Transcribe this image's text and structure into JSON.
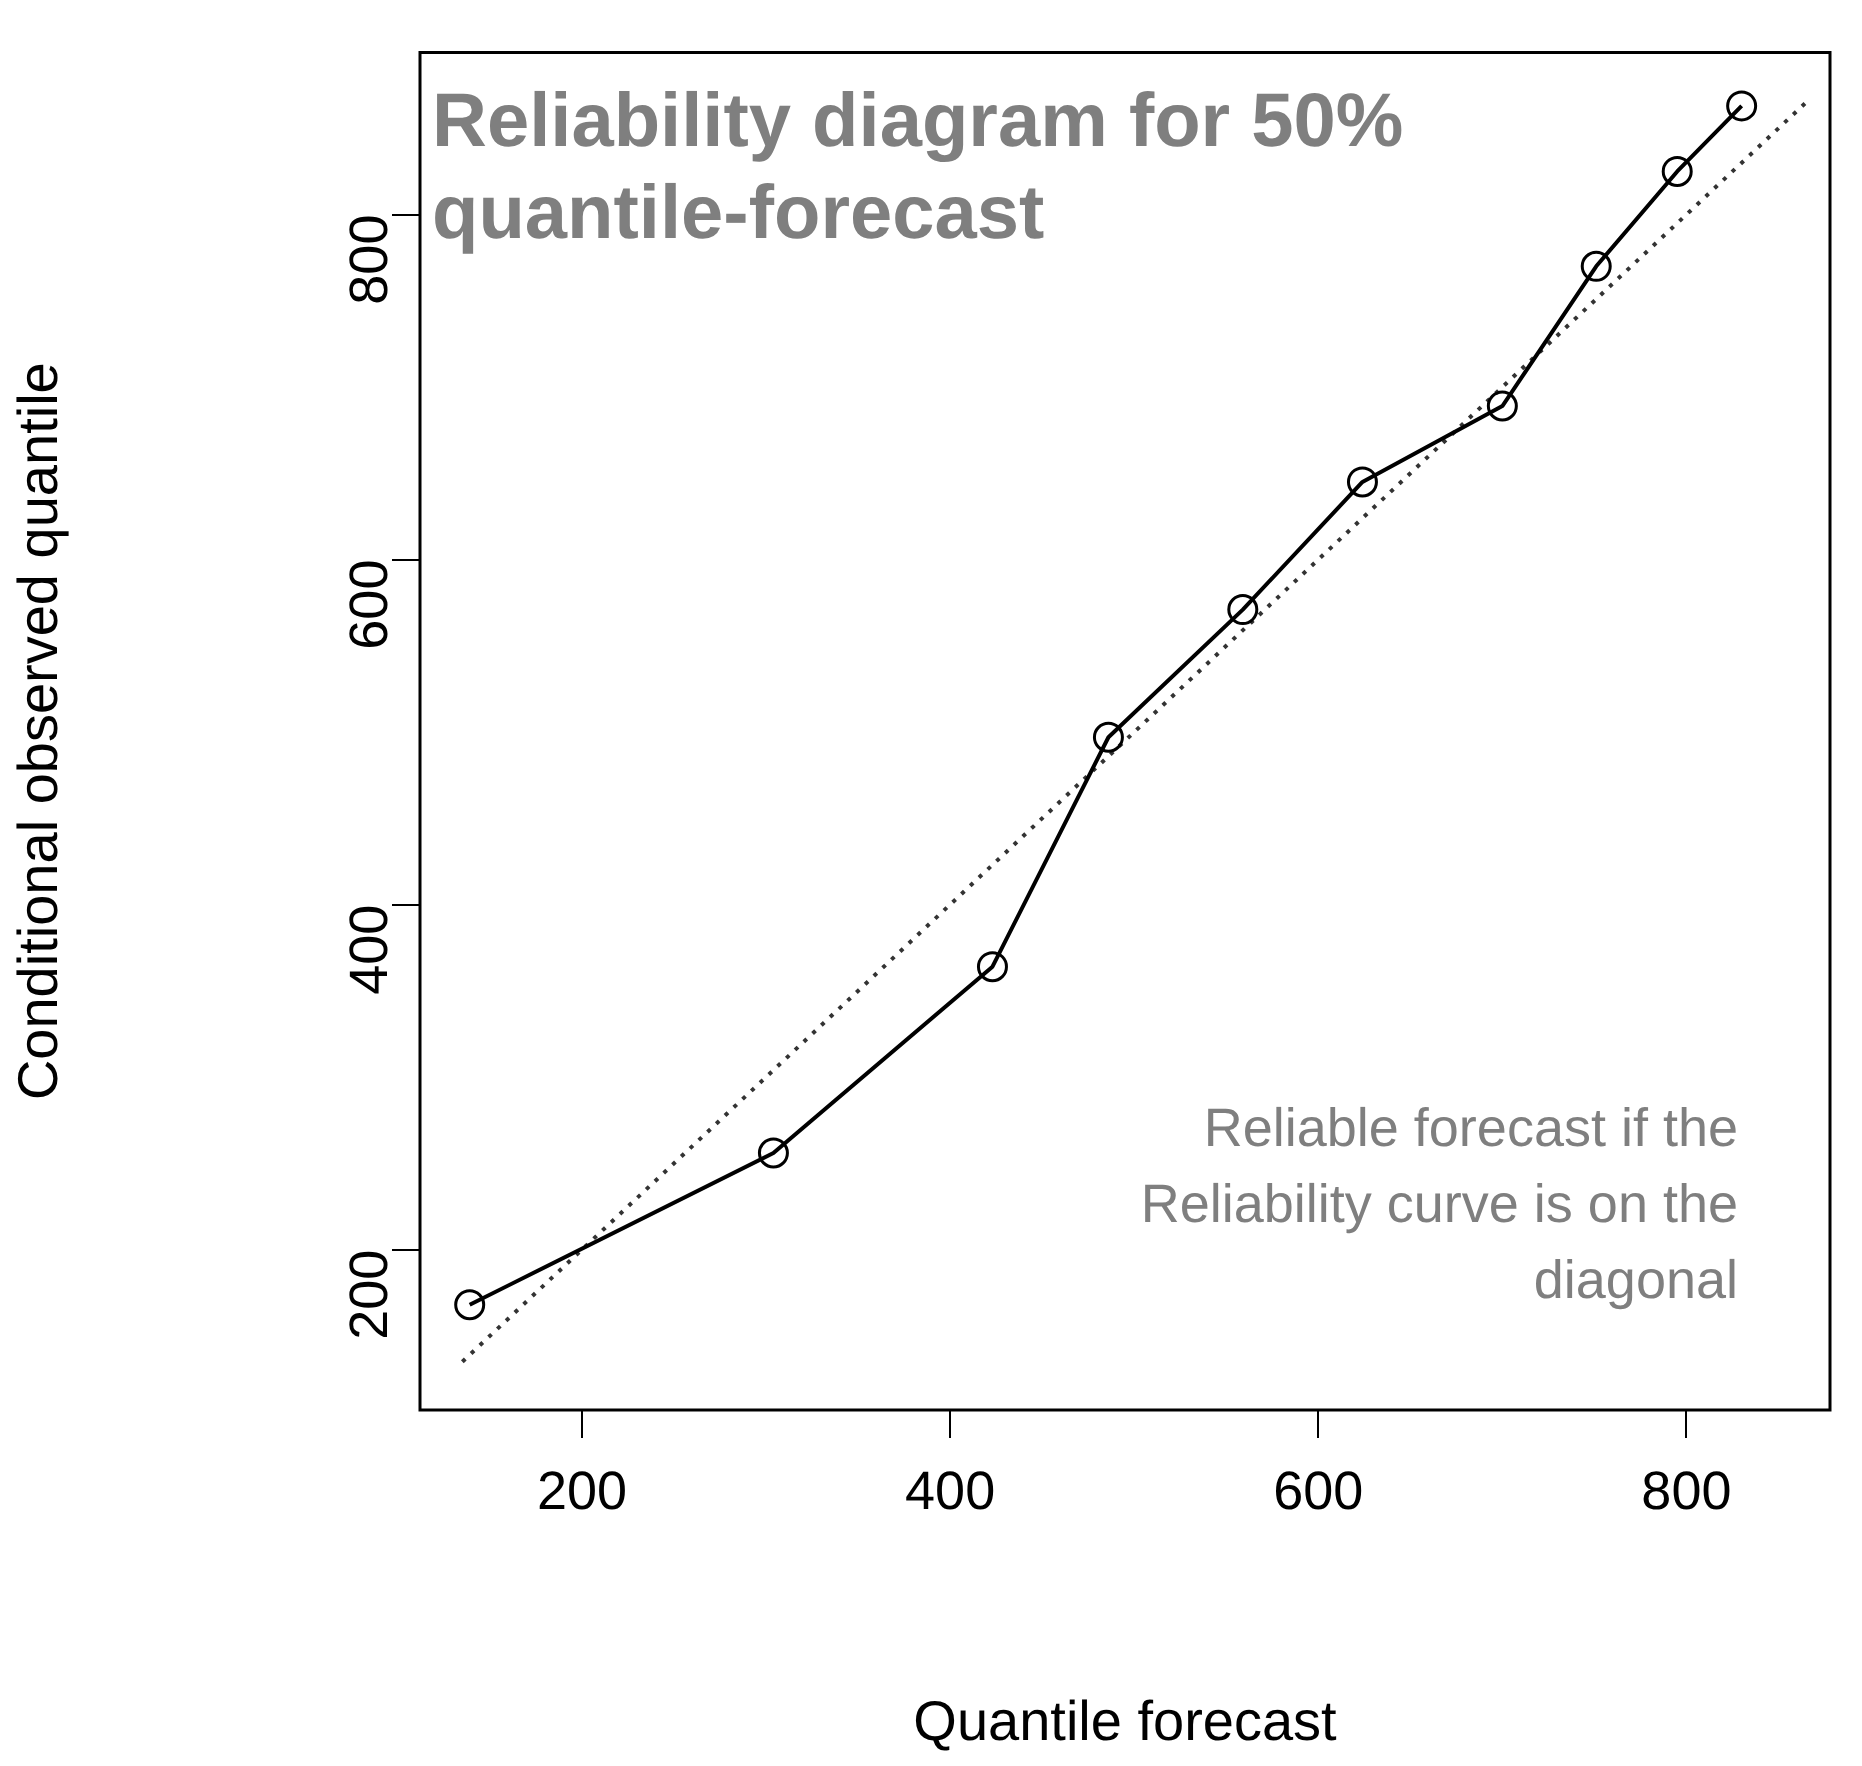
{
  "chart_data": {
    "type": "line",
    "title": "Reliability diagram for 50% quantile-forecast",
    "xlabel": "Quantile forecast",
    "ylabel": "Conditional observed quantile",
    "annotations": [
      "Reliable forecast if the Reliability curve is on the diagonal"
    ],
    "xlim": [
      112,
      878
    ],
    "ylim": [
      107,
      894
    ],
    "xticks": [
      200,
      400,
      600,
      800
    ],
    "yticks": [
      200,
      400,
      600,
      800
    ],
    "grid": false,
    "legend": false,
    "series": [
      {
        "color": "#000000",
        "marker": "circle",
        "line_style": "solid",
        "x": [
          139,
          304,
          423,
          486,
          559,
          624,
          700,
          751,
          795,
          830
        ],
        "values": [
          168,
          256,
          364,
          497,
          571,
          645,
          689,
          770,
          825,
          863
        ]
      },
      {
        "color": "#333333",
        "marker": "none",
        "line_style": "dotted",
        "x": [
          135,
          865
        ],
        "values": [
          135,
          865
        ]
      }
    ]
  }
}
